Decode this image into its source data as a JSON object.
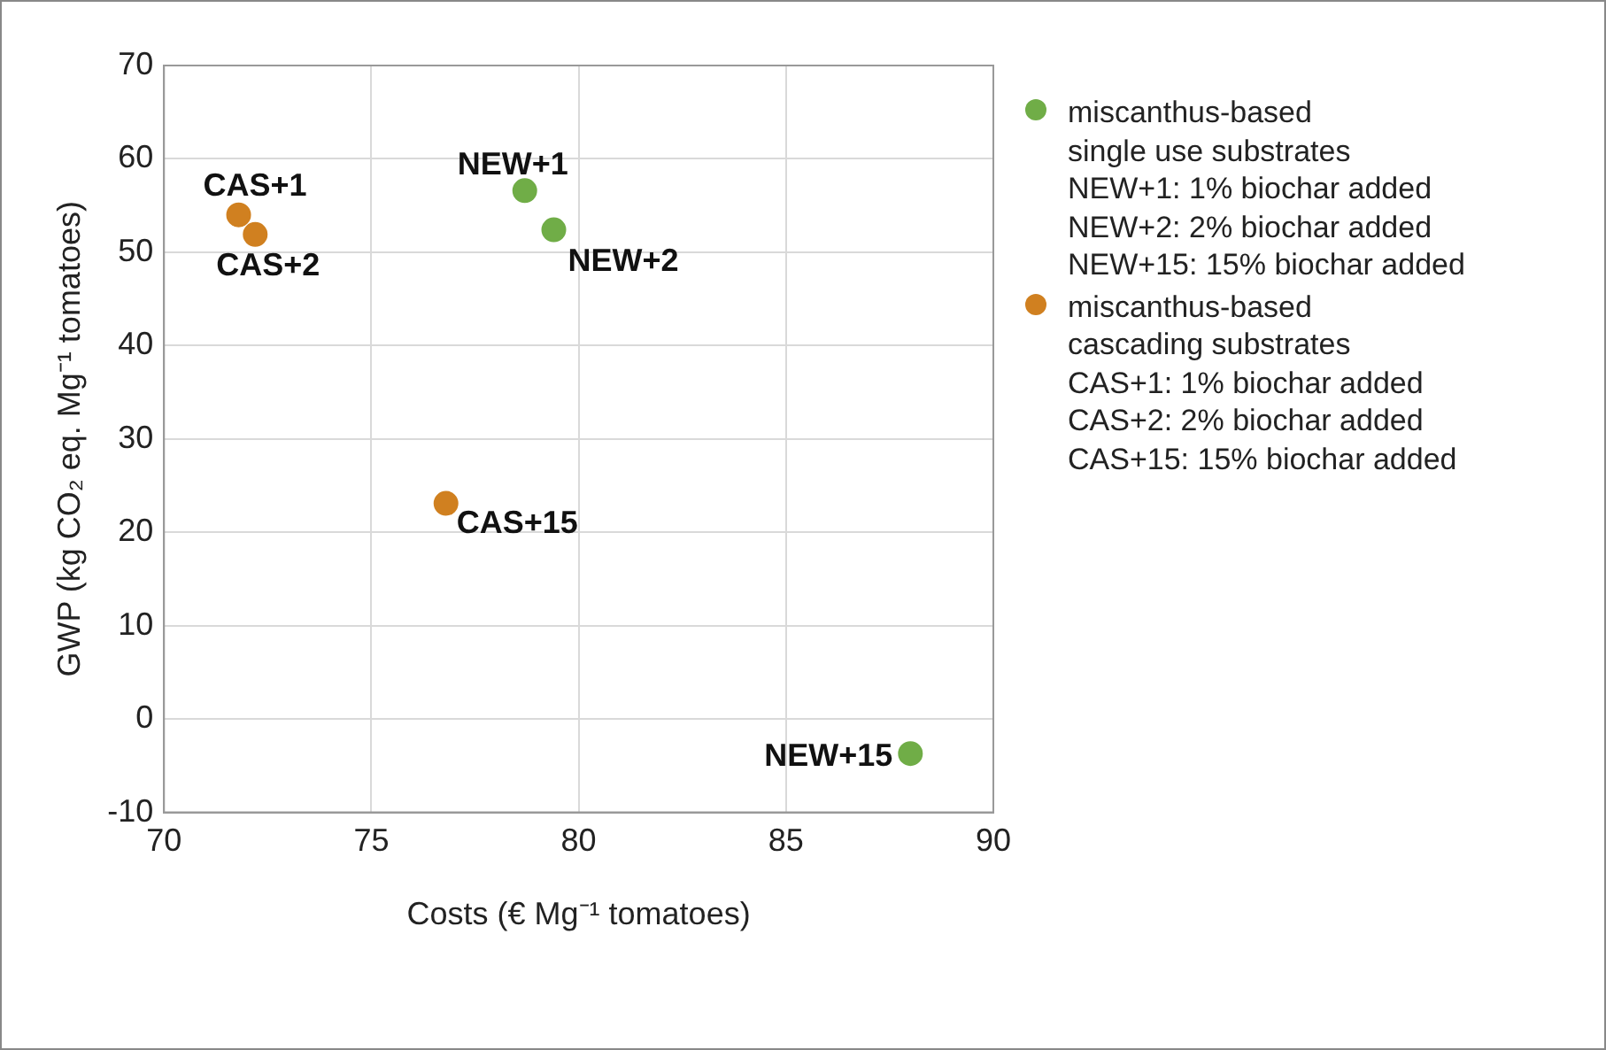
{
  "chart_data": {
    "type": "scatter",
    "xlabel": "Costs (€ Mg⁻¹ tomatoes)",
    "ylabel": "GWP (kg CO₂ eq. Mg⁻¹ tomatoes)",
    "xlim": [
      70,
      90
    ],
    "xticks": [
      70,
      75,
      80,
      85,
      90
    ],
    "ylim": [
      -10,
      70
    ],
    "yticks": [
      -10,
      0,
      10,
      20,
      30,
      40,
      50,
      60,
      70
    ],
    "grid": true,
    "legend": "right",
    "marker": "circle",
    "series": [
      {
        "name": "miscanthus-based\nsingle use substrates\nNEW+1: 1% biochar added\nNEW+2: 2% biochar added\nNEW+15: 15% biochar added",
        "color": "#70ad47",
        "x": [
          78.7,
          79.4,
          88.0
        ],
        "values": [
          56.6,
          52.4,
          -3.7
        ]
      },
      {
        "name": "miscanthus-based\ncascading substrates\nCAS+1: 1% biochar added\nCAS+2: 2% biochar added\nCAS+15: 15% biochar added",
        "color": "#d08020",
        "x": [
          71.8,
          72.2,
          76.8
        ],
        "values": [
          54.0,
          51.9,
          23.1
        ]
      }
    ],
    "annotations": [
      {
        "text": "NEW+1",
        "x": 78.7,
        "y": 56.6
      },
      {
        "text": "NEW+2",
        "x": 79.4,
        "y": 52.4
      },
      {
        "text": "NEW+15",
        "x": 88.0,
        "y": -3.7
      },
      {
        "text": "CAS+1",
        "x": 71.8,
        "y": 54.0
      },
      {
        "text": "CAS+2",
        "x": 72.2,
        "y": 51.9
      },
      {
        "text": "CAS+15",
        "x": 76.8,
        "y": 23.1
      }
    ]
  }
}
